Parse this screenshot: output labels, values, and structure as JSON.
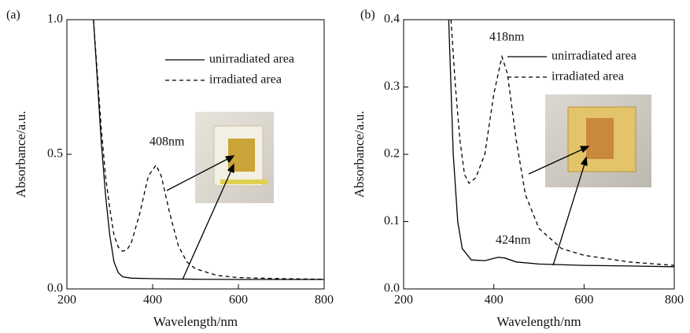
{
  "chart_data": [
    {
      "type": "line",
      "panel": "(a)",
      "xlabel": "Wavelength/nm",
      "ylabel": "Absorbance/a.u.",
      "xlim": [
        200,
        800
      ],
      "xticks": [
        200,
        400,
        600,
        800
      ],
      "ylim": [
        0,
        1
      ],
      "yticks": [
        {
          "value": 0,
          "label": "0.0"
        },
        0.5,
        {
          "value": 1,
          "label": "1.0"
        }
      ],
      "annotations": [
        "408nm"
      ],
      "series": [
        {
          "name": "unirradiated area",
          "color": "#000000",
          "linestyle": "solid",
          "x": [
            262,
            270,
            280,
            290,
            300,
            310,
            320,
            330,
            350,
            400,
            500,
            600,
            700,
            800
          ],
          "values": [
            1.0,
            0.8,
            0.55,
            0.35,
            0.2,
            0.1,
            0.06,
            0.045,
            0.04,
            0.038,
            0.036,
            0.035,
            0.035,
            0.035
          ]
        },
        {
          "name": "irradiated area",
          "color": "#000000",
          "linestyle": "dashed",
          "x": [
            262,
            270,
            280,
            290,
            300,
            310,
            320,
            330,
            340,
            350,
            370,
            390,
            408,
            420,
            440,
            460,
            480,
            500,
            550,
            600,
            700,
            800
          ],
          "values": [
            1.0,
            0.82,
            0.6,
            0.42,
            0.3,
            0.2,
            0.155,
            0.14,
            0.145,
            0.17,
            0.28,
            0.42,
            0.46,
            0.42,
            0.28,
            0.16,
            0.1,
            0.075,
            0.05,
            0.042,
            0.038,
            0.036
          ]
        }
      ]
    },
    {
      "type": "line",
      "panel": "(b)",
      "xlabel": "Wavelength/nm",
      "ylabel": "Absorbance/a.u.",
      "xlim": [
        200,
        800
      ],
      "xticks": [
        200,
        400,
        600,
        800
      ],
      "ylim": [
        0,
        0.4
      ],
      "yticks": [
        {
          "value": 0,
          "label": "0.0"
        },
        0.1,
        0.2,
        0.3,
        0.4
      ],
      "annotations": [
        "418nm",
        "424nm"
      ],
      "series": [
        {
          "name": "unirradiated area",
          "color": "#000000",
          "linestyle": "solid",
          "x": [
            300,
            310,
            320,
            330,
            350,
            380,
            410,
            424,
            450,
            500,
            600,
            700,
            800
          ],
          "values": [
            0.4,
            0.2,
            0.1,
            0.06,
            0.043,
            0.042,
            0.047,
            0.046,
            0.04,
            0.037,
            0.035,
            0.034,
            0.033
          ]
        },
        {
          "name": "irradiated area",
          "color": "#000000",
          "linestyle": "dashed",
          "x": [
            305,
            315,
            325,
            335,
            345,
            360,
            380,
            400,
            418,
            430,
            450,
            470,
            500,
            550,
            600,
            700,
            800
          ],
          "values": [
            0.4,
            0.3,
            0.22,
            0.17,
            0.157,
            0.165,
            0.2,
            0.29,
            0.345,
            0.32,
            0.22,
            0.14,
            0.09,
            0.06,
            0.05,
            0.04,
            0.035
          ]
        }
      ]
    }
  ]
}
